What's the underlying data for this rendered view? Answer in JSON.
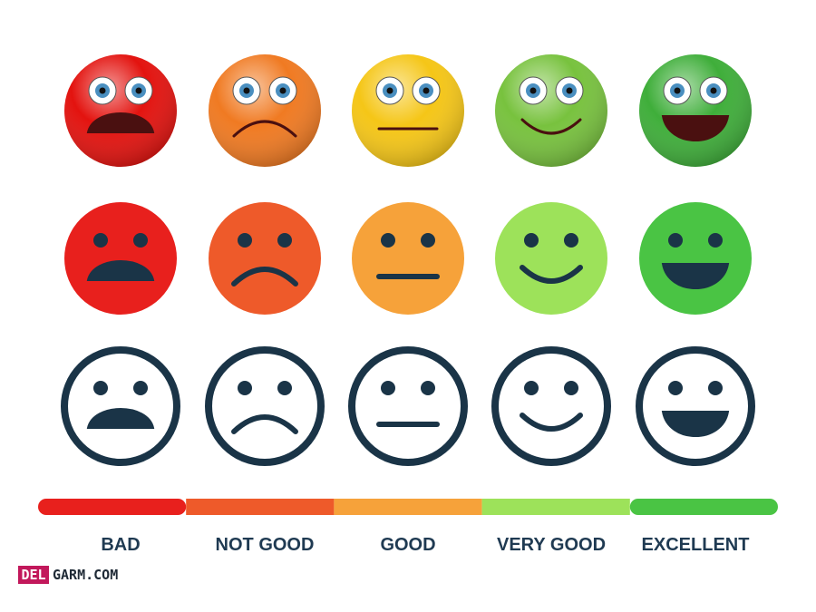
{
  "scale": {
    "levels": [
      {
        "label": "BAD"
      },
      {
        "label": "NOT GOOD"
      },
      {
        "label": "GOOD"
      },
      {
        "label": "VERY GOOD"
      },
      {
        "label": "EXCELLENT"
      }
    ]
  },
  "watermark": {
    "brand": "DEL",
    "domain": "GARM.COM"
  }
}
